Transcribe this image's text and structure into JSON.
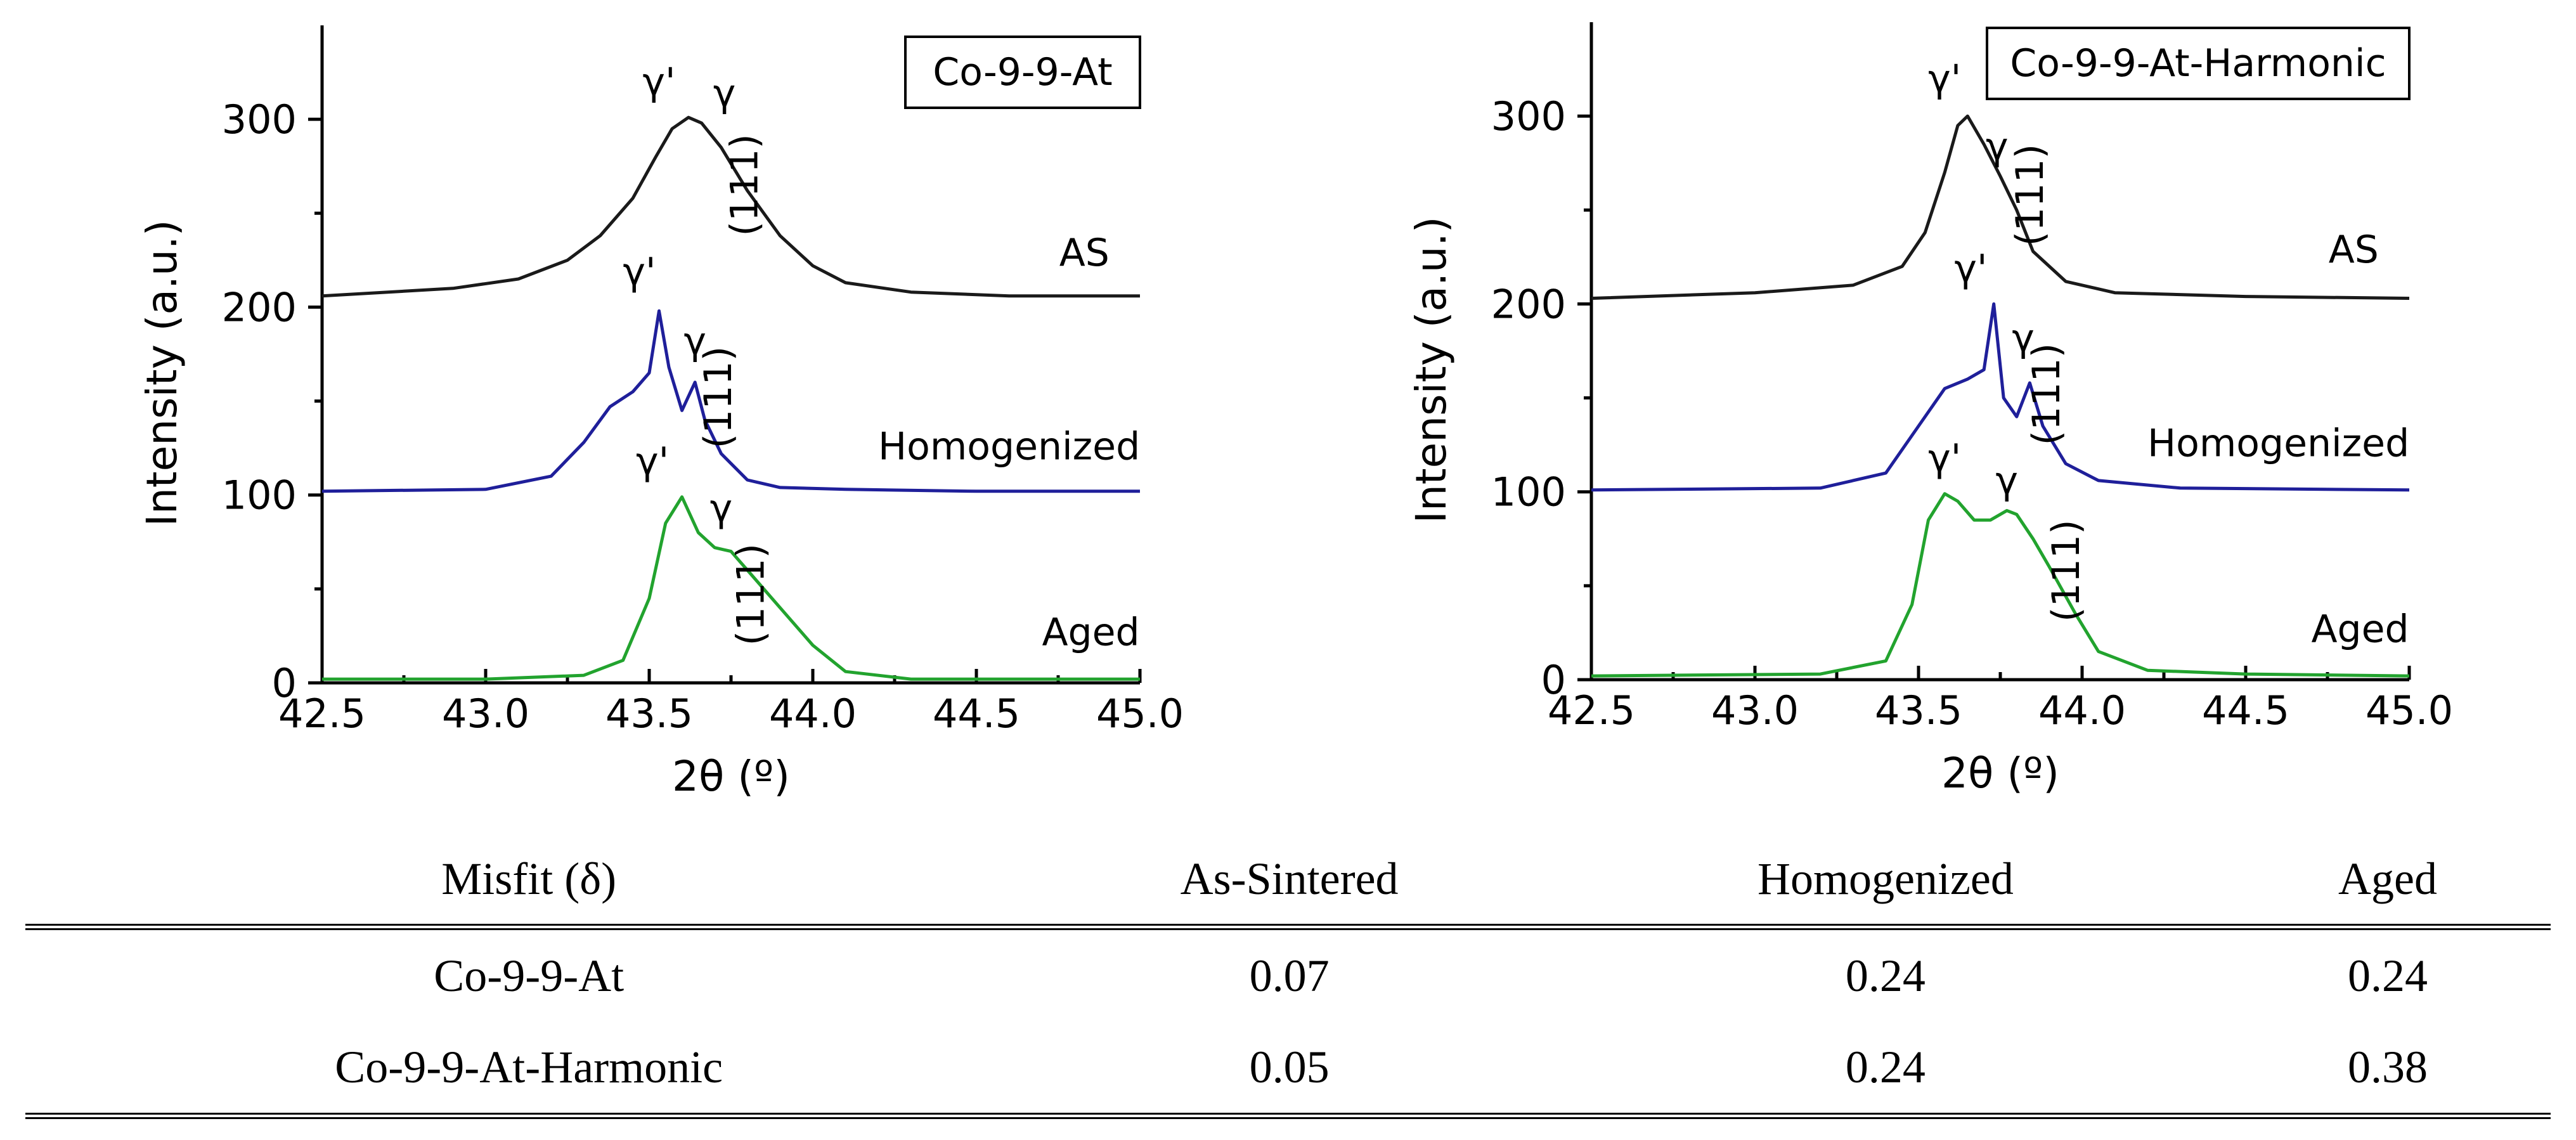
{
  "chart_data": [
    {
      "type": "line",
      "title": "Co-9-9-At",
      "xlabel": "2θ (º)",
      "ylabel": "Intensity (a.u.)",
      "xlim": [
        42.5,
        45.0
      ],
      "ylim": [
        0,
        350
      ],
      "xticks": [
        "42.5",
        "43.0",
        "43.5",
        "44.0",
        "44.5",
        "45.0"
      ],
      "yticks": [
        "0",
        "100",
        "200",
        "300"
      ],
      "series": [
        {
          "name": "AS",
          "color": "#1a1a1a",
          "x": [
            42.5,
            42.9,
            43.1,
            43.25,
            43.35,
            43.45,
            43.52,
            43.57,
            43.62,
            43.66,
            43.72,
            43.8,
            43.9,
            44.0,
            44.1,
            44.3,
            44.6,
            45.0
          ],
          "y": [
            206,
            210,
            215,
            225,
            238,
            258,
            280,
            295,
            301,
            298,
            285,
            262,
            238,
            222,
            213,
            208,
            206,
            206
          ]
        },
        {
          "name": "Homogenized",
          "color": "#1f1f9a",
          "x": [
            42.5,
            43.0,
            43.2,
            43.3,
            43.38,
            43.45,
            43.5,
            43.53,
            43.56,
            43.6,
            43.64,
            43.67,
            43.72,
            43.8,
            43.9,
            44.1,
            44.5,
            45.0
          ],
          "y": [
            102,
            103,
            110,
            128,
            147,
            155,
            165,
            198,
            168,
            145,
            160,
            140,
            122,
            108,
            104,
            103,
            102,
            102
          ]
        },
        {
          "name": "Aged",
          "color": "#22a32e",
          "x": [
            42.5,
            43.0,
            43.3,
            43.42,
            43.5,
            43.55,
            43.6,
            43.65,
            43.7,
            43.75,
            43.8,
            43.9,
            44.0,
            44.1,
            44.3,
            45.0
          ],
          "y": [
            2,
            2,
            4,
            12,
            45,
            85,
            99,
            80,
            72,
            70,
            60,
            40,
            20,
            6,
            2,
            2
          ]
        }
      ],
      "annotations": [
        {
          "text": "γ'",
          "x": 43.53,
          "y": 313
        },
        {
          "text": "γ",
          "x": 43.73,
          "y": 307
        },
        {
          "text": "(111)",
          "x": 43.83,
          "y": 265,
          "rotation": -90
        },
        {
          "text": "γ'",
          "x": 43.47,
          "y": 212
        },
        {
          "text": "γ",
          "x": 43.64,
          "y": 175
        },
        {
          "text": "(111)",
          "x": 43.75,
          "y": 152,
          "rotation": -90
        },
        {
          "text": "γ'",
          "x": 43.51,
          "y": 111
        },
        {
          "text": "γ",
          "x": 43.72,
          "y": 86
        },
        {
          "text": "(111)",
          "x": 43.85,
          "y": 47,
          "rotation": -90
        }
      ],
      "series_labels": [
        {
          "text": "AS",
          "x": 44.83,
          "y": 222
        },
        {
          "text": "Homogenized",
          "x": 44.6,
          "y": 119
        },
        {
          "text": "Aged",
          "x": 44.85,
          "y": 20
        }
      ]
    },
    {
      "type": "line",
      "title": "Co-9-9-At-Harmonic",
      "xlabel": "2θ (º)",
      "ylabel": "Intensity (a.u.)",
      "xlim": [
        42.5,
        45.0
      ],
      "ylim": [
        0,
        350
      ],
      "xticks": [
        "42.5",
        "43.0",
        "43.5",
        "44.0",
        "44.5",
        "45.0"
      ],
      "yticks": [
        "0",
        "100",
        "200",
        "300"
      ],
      "series": [
        {
          "name": "AS",
          "color": "#1a1a1a",
          "x": [
            42.5,
            43.0,
            43.3,
            43.45,
            43.52,
            43.58,
            43.62,
            43.65,
            43.7,
            43.75,
            43.8,
            43.85,
            43.95,
            44.1,
            44.5,
            45.0
          ],
          "y": [
            203,
            206,
            210,
            220,
            238,
            270,
            295,
            300,
            285,
            268,
            250,
            228,
            212,
            206,
            204,
            203
          ]
        },
        {
          "name": "Homogenized",
          "color": "#1f1f9a",
          "x": [
            42.5,
            43.2,
            43.4,
            43.5,
            43.58,
            43.65,
            43.7,
            43.73,
            43.76,
            43.8,
            43.84,
            43.88,
            43.95,
            44.05,
            44.3,
            45.0
          ],
          "y": [
            101,
            102,
            110,
            135,
            155,
            160,
            165,
            200,
            150,
            140,
            158,
            135,
            115,
            106,
            102,
            101
          ]
        },
        {
          "name": "Aged",
          "color": "#22a32e",
          "x": [
            42.5,
            43.2,
            43.4,
            43.48,
            43.53,
            43.58,
            43.62,
            43.67,
            43.72,
            43.77,
            43.8,
            43.85,
            43.9,
            43.98,
            44.05,
            44.2,
            44.5,
            45.0
          ],
          "y": [
            2,
            3,
            10,
            40,
            85,
            99,
            95,
            85,
            85,
            90,
            88,
            75,
            60,
            35,
            15,
            5,
            3,
            2
          ]
        }
      ],
      "annotations": [
        {
          "text": "γ'",
          "x": 43.58,
          "y": 313
        },
        {
          "text": "γ",
          "x": 43.74,
          "y": 277
        },
        {
          "text": "(111)",
          "x": 43.88,
          "y": 258,
          "rotation": -90
        },
        {
          "text": "γ'",
          "x": 43.66,
          "y": 212
        },
        {
          "text": "γ",
          "x": 43.82,
          "y": 175
        },
        {
          "text": "(111)",
          "x": 43.93,
          "y": 152,
          "rotation": -90
        },
        {
          "text": "γ'",
          "x": 43.58,
          "y": 111
        },
        {
          "text": "γ",
          "x": 43.77,
          "y": 99
        },
        {
          "text": "(111)",
          "x": 43.99,
          "y": 58,
          "rotation": -90
        }
      ],
      "series_labels": [
        {
          "text": "AS",
          "x": 44.83,
          "y": 222
        },
        {
          "text": "Homogenized",
          "x": 44.6,
          "y": 119
        },
        {
          "text": "Aged",
          "x": 44.85,
          "y": 20
        }
      ]
    }
  ],
  "table": {
    "headers": [
      "Misfit (δ)",
      "As-Sintered",
      "Homogenized",
      "Aged"
    ],
    "rows": [
      [
        "Co-9-9-At",
        "0.07",
        "0.24",
        "0.24"
      ],
      [
        "Co-9-9-At-Harmonic",
        "0.05",
        "0.24",
        "0.38"
      ]
    ]
  }
}
